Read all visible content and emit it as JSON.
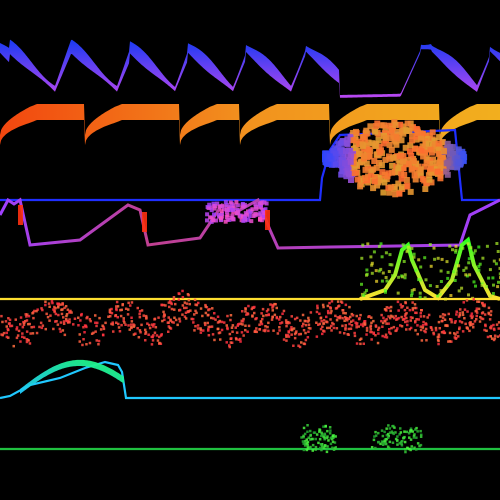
{
  "background": "#000000",
  "traces": [
    {
      "name": "blue-violet-sawtooth-band",
      "type": "band",
      "colors": [
        "#1a3dff",
        "#c64cff"
      ]
    },
    {
      "name": "orange-sawtooth-band",
      "type": "band",
      "colors": [
        "#ff4a10",
        "#ffb020"
      ]
    },
    {
      "name": "blue-orange-scatter-cloud",
      "type": "scatter",
      "colors": [
        "#2c45ff",
        "#ff8a20"
      ]
    },
    {
      "name": "blue-purple-step-trace",
      "type": "line",
      "colors": [
        "#1f2fff",
        "#a040ff",
        "#ff3010"
      ]
    },
    {
      "name": "yellow-green-spike-trace",
      "type": "line",
      "colors": [
        "#ffe030",
        "#30ff20"
      ]
    },
    {
      "name": "red-scatter-noise",
      "type": "scatter",
      "colors": [
        "#ff2a40",
        "#ff7040"
      ]
    },
    {
      "name": "cyan-green-hump-trace",
      "type": "line",
      "colors": [
        "#20d0ff",
        "#20ff60"
      ]
    },
    {
      "name": "green-flat-scatter-trace",
      "type": "scatter",
      "colors": [
        "#20c040",
        "#40ff40"
      ]
    }
  ]
}
